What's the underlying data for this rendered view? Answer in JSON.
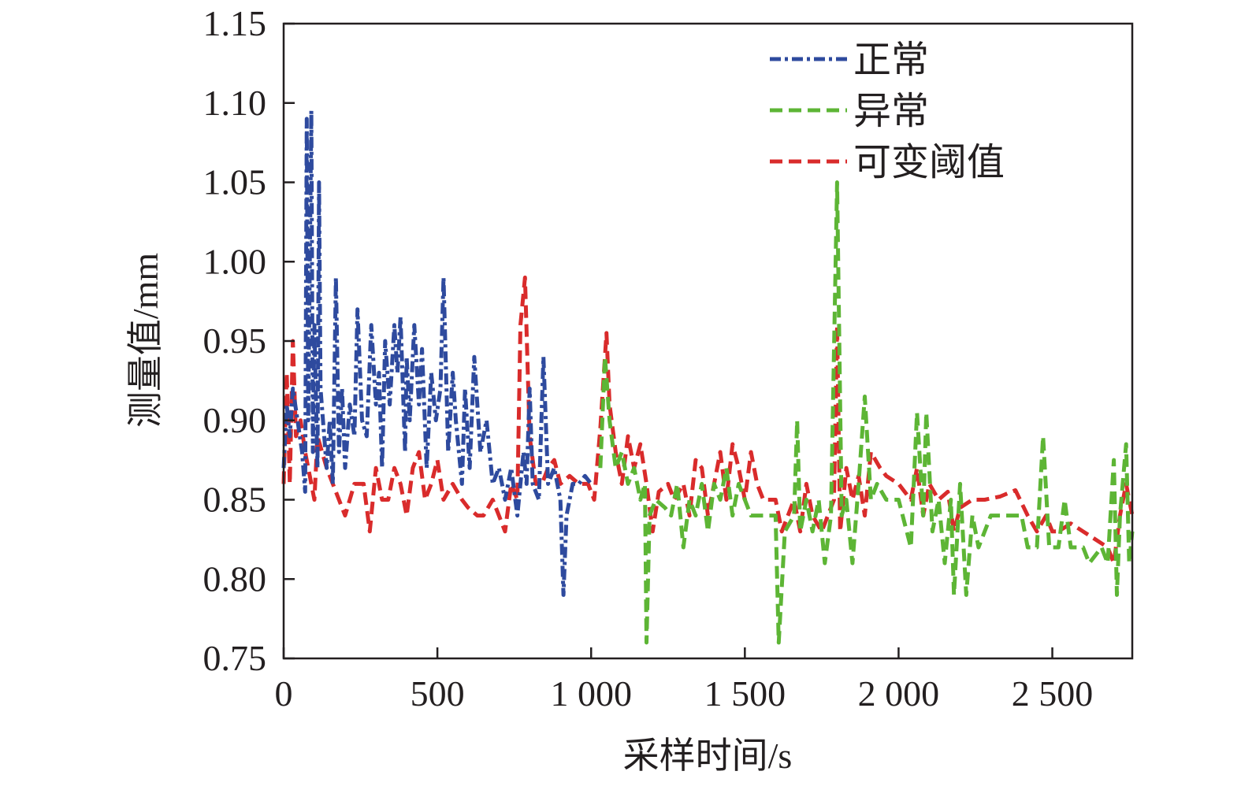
{
  "chart_data": {
    "type": "line",
    "title": "",
    "xlabel": "采样时间/s",
    "ylabel": "测量值/mm",
    "xlim": [
      0,
      2760
    ],
    "ylim": [
      0.75,
      1.15
    ],
    "xticks": [
      0,
      500,
      1000,
      1500,
      2000,
      2500
    ],
    "xtick_labels": [
      "0",
      "500",
      "1 000",
      "1 500",
      "2 000",
      "2 500"
    ],
    "yticks": [
      0.75,
      0.8,
      0.85,
      0.9,
      0.95,
      1.0,
      1.05,
      1.1,
      1.15
    ],
    "ytick_labels": [
      "0.75",
      "0.80",
      "0.85",
      "0.90",
      "0.95",
      "1.00",
      "1.05",
      "1.10",
      "1.15"
    ],
    "grid": false,
    "legend_position": "top-right",
    "series": [
      {
        "name": "正常",
        "color": "#2e4a9e",
        "dash": "dashdot",
        "x": [
          0,
          10,
          20,
          30,
          45,
          60,
          70,
          75,
          80,
          90,
          95,
          100,
          110,
          115,
          120,
          140,
          150,
          160,
          170,
          180,
          190,
          200,
          215,
          230,
          240,
          255,
          270,
          285,
          300,
          310,
          320,
          330,
          345,
          360,
          370,
          380,
          395,
          400,
          410,
          425,
          440,
          450,
          465,
          480,
          495,
          510,
          520,
          535,
          550,
          560,
          580,
          590,
          605,
          620,
          640,
          660,
          680,
          700,
          720,
          740,
          760,
          780,
          790,
          800,
          810,
          830,
          845,
          860,
          880,
          900,
          910,
          920,
          940,
          960,
          980,
          1000
        ],
        "y": [
          0.87,
          0.91,
          0.89,
          0.92,
          0.9,
          0.88,
          0.855,
          1.09,
          0.9,
          1.095,
          0.88,
          0.96,
          0.87,
          1.05,
          0.92,
          0.87,
          0.9,
          0.86,
          0.99,
          0.88,
          0.92,
          0.87,
          0.91,
          0.89,
          0.97,
          0.9,
          0.89,
          0.96,
          0.91,
          0.93,
          0.87,
          0.95,
          0.91,
          0.96,
          0.93,
          0.965,
          0.88,
          0.94,
          0.9,
          0.96,
          0.91,
          0.945,
          0.87,
          0.93,
          0.9,
          0.92,
          0.99,
          0.88,
          0.93,
          0.9,
          0.86,
          0.92,
          0.87,
          0.94,
          0.88,
          0.9,
          0.86,
          0.87,
          0.85,
          0.87,
          0.84,
          0.88,
          0.86,
          0.92,
          0.86,
          0.85,
          0.94,
          0.86,
          0.87,
          0.85,
          0.79,
          0.84,
          0.86,
          0.86,
          0.865,
          0.86
        ]
      },
      {
        "name": "异常",
        "color": "#5db535",
        "dash": "dashed",
        "x": [
          1030,
          1045,
          1060,
          1080,
          1100,
          1120,
          1140,
          1160,
          1175,
          1180,
          1190,
          1210,
          1240,
          1260,
          1280,
          1300,
          1320,
          1340,
          1360,
          1380,
          1400,
          1420,
          1440,
          1460,
          1480,
          1500,
          1520,
          1560,
          1600,
          1610,
          1630,
          1660,
          1670,
          1680,
          1700,
          1720,
          1740,
          1760,
          1780,
          1800,
          1815,
          1830,
          1850,
          1870,
          1890,
          1910,
          1930,
          1960,
          2000,
          2040,
          2060,
          2080,
          2090,
          2110,
          2130,
          2150,
          2170,
          2180,
          2200,
          2220,
          2240,
          2260,
          2300,
          2350,
          2400,
          2420,
          2450,
          2470,
          2490,
          2520,
          2540,
          2560,
          2600,
          2620,
          2660,
          2680,
          2700,
          2710,
          2720,
          2740,
          2750,
          2760
        ],
        "y": [
          0.87,
          0.94,
          0.9,
          0.87,
          0.88,
          0.86,
          0.87,
          0.85,
          0.86,
          0.76,
          0.84,
          0.85,
          0.845,
          0.84,
          0.86,
          0.82,
          0.85,
          0.84,
          0.86,
          0.83,
          0.86,
          0.85,
          0.87,
          0.84,
          0.86,
          0.85,
          0.84,
          0.84,
          0.84,
          0.76,
          0.83,
          0.84,
          0.9,
          0.83,
          0.85,
          0.83,
          0.85,
          0.81,
          0.84,
          1.05,
          0.84,
          0.85,
          0.81,
          0.86,
          0.915,
          0.85,
          0.86,
          0.85,
          0.85,
          0.82,
          0.905,
          0.84,
          0.905,
          0.83,
          0.85,
          0.81,
          0.85,
          0.79,
          0.86,
          0.79,
          0.84,
          0.82,
          0.84,
          0.84,
          0.84,
          0.82,
          0.82,
          0.89,
          0.82,
          0.82,
          0.85,
          0.82,
          0.82,
          0.81,
          0.82,
          0.81,
          0.875,
          0.79,
          0.84,
          0.885,
          0.81,
          0.83
        ]
      },
      {
        "name": "可变阈值",
        "color": "#d92b2b",
        "dash": "dashed",
        "x": [
          0,
          10,
          20,
          30,
          40,
          55,
          70,
          100,
          110,
          140,
          160,
          180,
          200,
          230,
          260,
          280,
          300,
          320,
          340,
          360,
          380,
          400,
          420,
          440,
          460,
          480,
          500,
          520,
          550,
          580,
          600,
          630,
          650,
          680,
          700,
          720,
          740,
          760,
          770,
          785,
          800,
          820,
          840,
          860,
          880,
          900,
          930,
          960,
          990,
          1010,
          1030,
          1050,
          1060,
          1080,
          1100,
          1120,
          1140,
          1160,
          1180,
          1200,
          1220,
          1250,
          1270,
          1300,
          1320,
          1340,
          1360,
          1380,
          1400,
          1420,
          1440,
          1460,
          1480,
          1500,
          1520,
          1540,
          1560,
          1600,
          1620,
          1640,
          1660,
          1680,
          1700,
          1720,
          1750,
          1770,
          1790,
          1800,
          1810,
          1830,
          1850,
          1870,
          1890,
          1910,
          1940,
          1960,
          2000,
          2040,
          2060,
          2080,
          2100,
          2130,
          2160,
          2180,
          2200,
          2240,
          2280,
          2330,
          2380,
          2420,
          2450,
          2480,
          2500,
          2520,
          2560,
          2600,
          2640,
          2680,
          2700,
          2720,
          2740,
          2760
        ],
        "y": [
          0.86,
          0.93,
          0.86,
          0.95,
          0.89,
          0.9,
          0.88,
          0.85,
          0.89,
          0.87,
          0.86,
          0.85,
          0.84,
          0.86,
          0.86,
          0.83,
          0.87,
          0.85,
          0.85,
          0.87,
          0.86,
          0.84,
          0.87,
          0.88,
          0.85,
          0.86,
          0.875,
          0.85,
          0.86,
          0.85,
          0.845,
          0.84,
          0.84,
          0.85,
          0.84,
          0.83,
          0.86,
          0.85,
          0.96,
          0.99,
          0.89,
          0.86,
          0.86,
          0.87,
          0.875,
          0.86,
          0.865,
          0.86,
          0.86,
          0.85,
          0.895,
          0.955,
          0.91,
          0.88,
          0.86,
          0.89,
          0.87,
          0.885,
          0.86,
          0.83,
          0.855,
          0.86,
          0.85,
          0.86,
          0.84,
          0.875,
          0.87,
          0.84,
          0.86,
          0.88,
          0.85,
          0.885,
          0.87,
          0.85,
          0.88,
          0.86,
          0.85,
          0.85,
          0.83,
          0.84,
          0.85,
          0.83,
          0.86,
          0.84,
          0.83,
          0.84,
          0.85,
          0.96,
          0.83,
          0.87,
          0.85,
          0.865,
          0.84,
          0.88,
          0.87,
          0.865,
          0.86,
          0.85,
          0.87,
          0.84,
          0.86,
          0.85,
          0.855,
          0.83,
          0.845,
          0.85,
          0.85,
          0.852,
          0.856,
          0.84,
          0.83,
          0.84,
          0.83,
          0.83,
          0.835,
          0.83,
          0.825,
          0.82,
          0.81,
          0.84,
          0.86,
          0.84
        ]
      }
    ]
  }
}
